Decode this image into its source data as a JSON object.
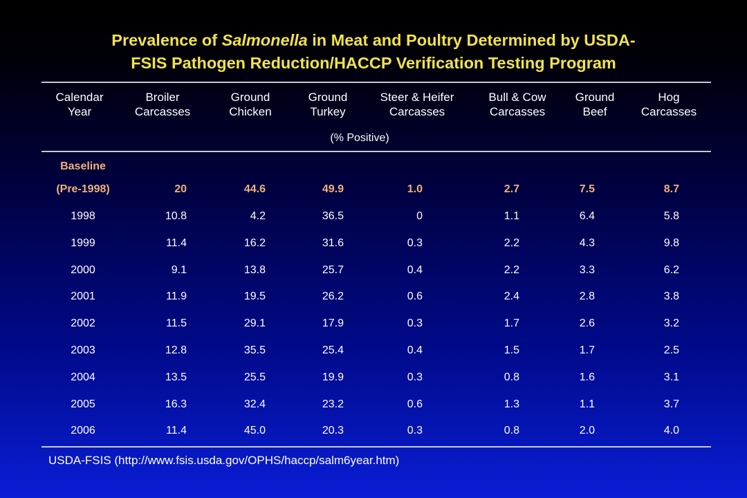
{
  "title": {
    "line1_prefix": "Prevalence of ",
    "line1_italic": "Salmonella",
    "line1_suffix": " in Meat and Poultry Determined by USDA-",
    "line2": "FSIS Pathogen Reduction/HACCP Verification Testing Program"
  },
  "unit_label": "(% Positive)",
  "source": "USDA-FSIS (http://www.fsis.usda.gov/OPHS/haccp/salm6year.htm)",
  "colors": {
    "title": "#f2e34a",
    "baseline": "#f0b27a",
    "text": "#ffffff"
  },
  "chart_data": {
    "type": "table",
    "columns": [
      [
        "Calendar",
        "Year"
      ],
      [
        "Broiler",
        "Carcasses"
      ],
      [
        "Ground",
        "Chicken"
      ],
      [
        "Ground",
        "Turkey"
      ],
      [
        "Steer & Heifer",
        "Carcasses"
      ],
      [
        "Bull & Cow",
        "Carcasses"
      ],
      [
        "Ground",
        "Beef"
      ],
      [
        "Hog",
        "Carcasses"
      ]
    ],
    "baseline": {
      "label_line1": "Baseline",
      "label_line2": "(Pre-1998)",
      "values": [
        "20",
        "44.6",
        "49.9",
        "1.0",
        "2.7",
        "7.5",
        "8.7"
      ]
    },
    "rows": [
      {
        "year": "1998",
        "values": [
          "10.8",
          "4.2",
          "36.5",
          "0",
          "1.1",
          "6.4",
          "5.8"
        ]
      },
      {
        "year": "1999",
        "values": [
          "11.4",
          "16.2",
          "31.6",
          "0.3",
          "2.2",
          "4.3",
          "9.8"
        ]
      },
      {
        "year": "2000",
        "values": [
          "9.1",
          "13.8",
          "25.7",
          "0.4",
          "2.2",
          "3.3",
          "6.2"
        ]
      },
      {
        "year": "2001",
        "values": [
          "11.9",
          "19.5",
          "26.2",
          "0.6",
          "2.4",
          "2.8",
          "3.8"
        ]
      },
      {
        "year": "2002",
        "values": [
          "11.5",
          "29.1",
          "17.9",
          "0.3",
          "1.7",
          "2.6",
          "3.2"
        ]
      },
      {
        "year": "2003",
        "values": [
          "12.8",
          "35.5",
          "25.4",
          "0.4",
          "1.5",
          "1.7",
          "2.5"
        ]
      },
      {
        "year": "2004",
        "values": [
          "13.5",
          "25.5",
          "19.9",
          "0.3",
          "0.8",
          "1.6",
          "3.1"
        ]
      },
      {
        "year": "2005",
        "values": [
          "16.3",
          "32.4",
          "23.2",
          "0.6",
          "1.3",
          "1.1",
          "3.7"
        ]
      },
      {
        "year": "2006",
        "values": [
          "11.4",
          "45.0",
          "20.3",
          "0.3",
          "0.8",
          "2.0",
          "4.0"
        ]
      }
    ]
  }
}
